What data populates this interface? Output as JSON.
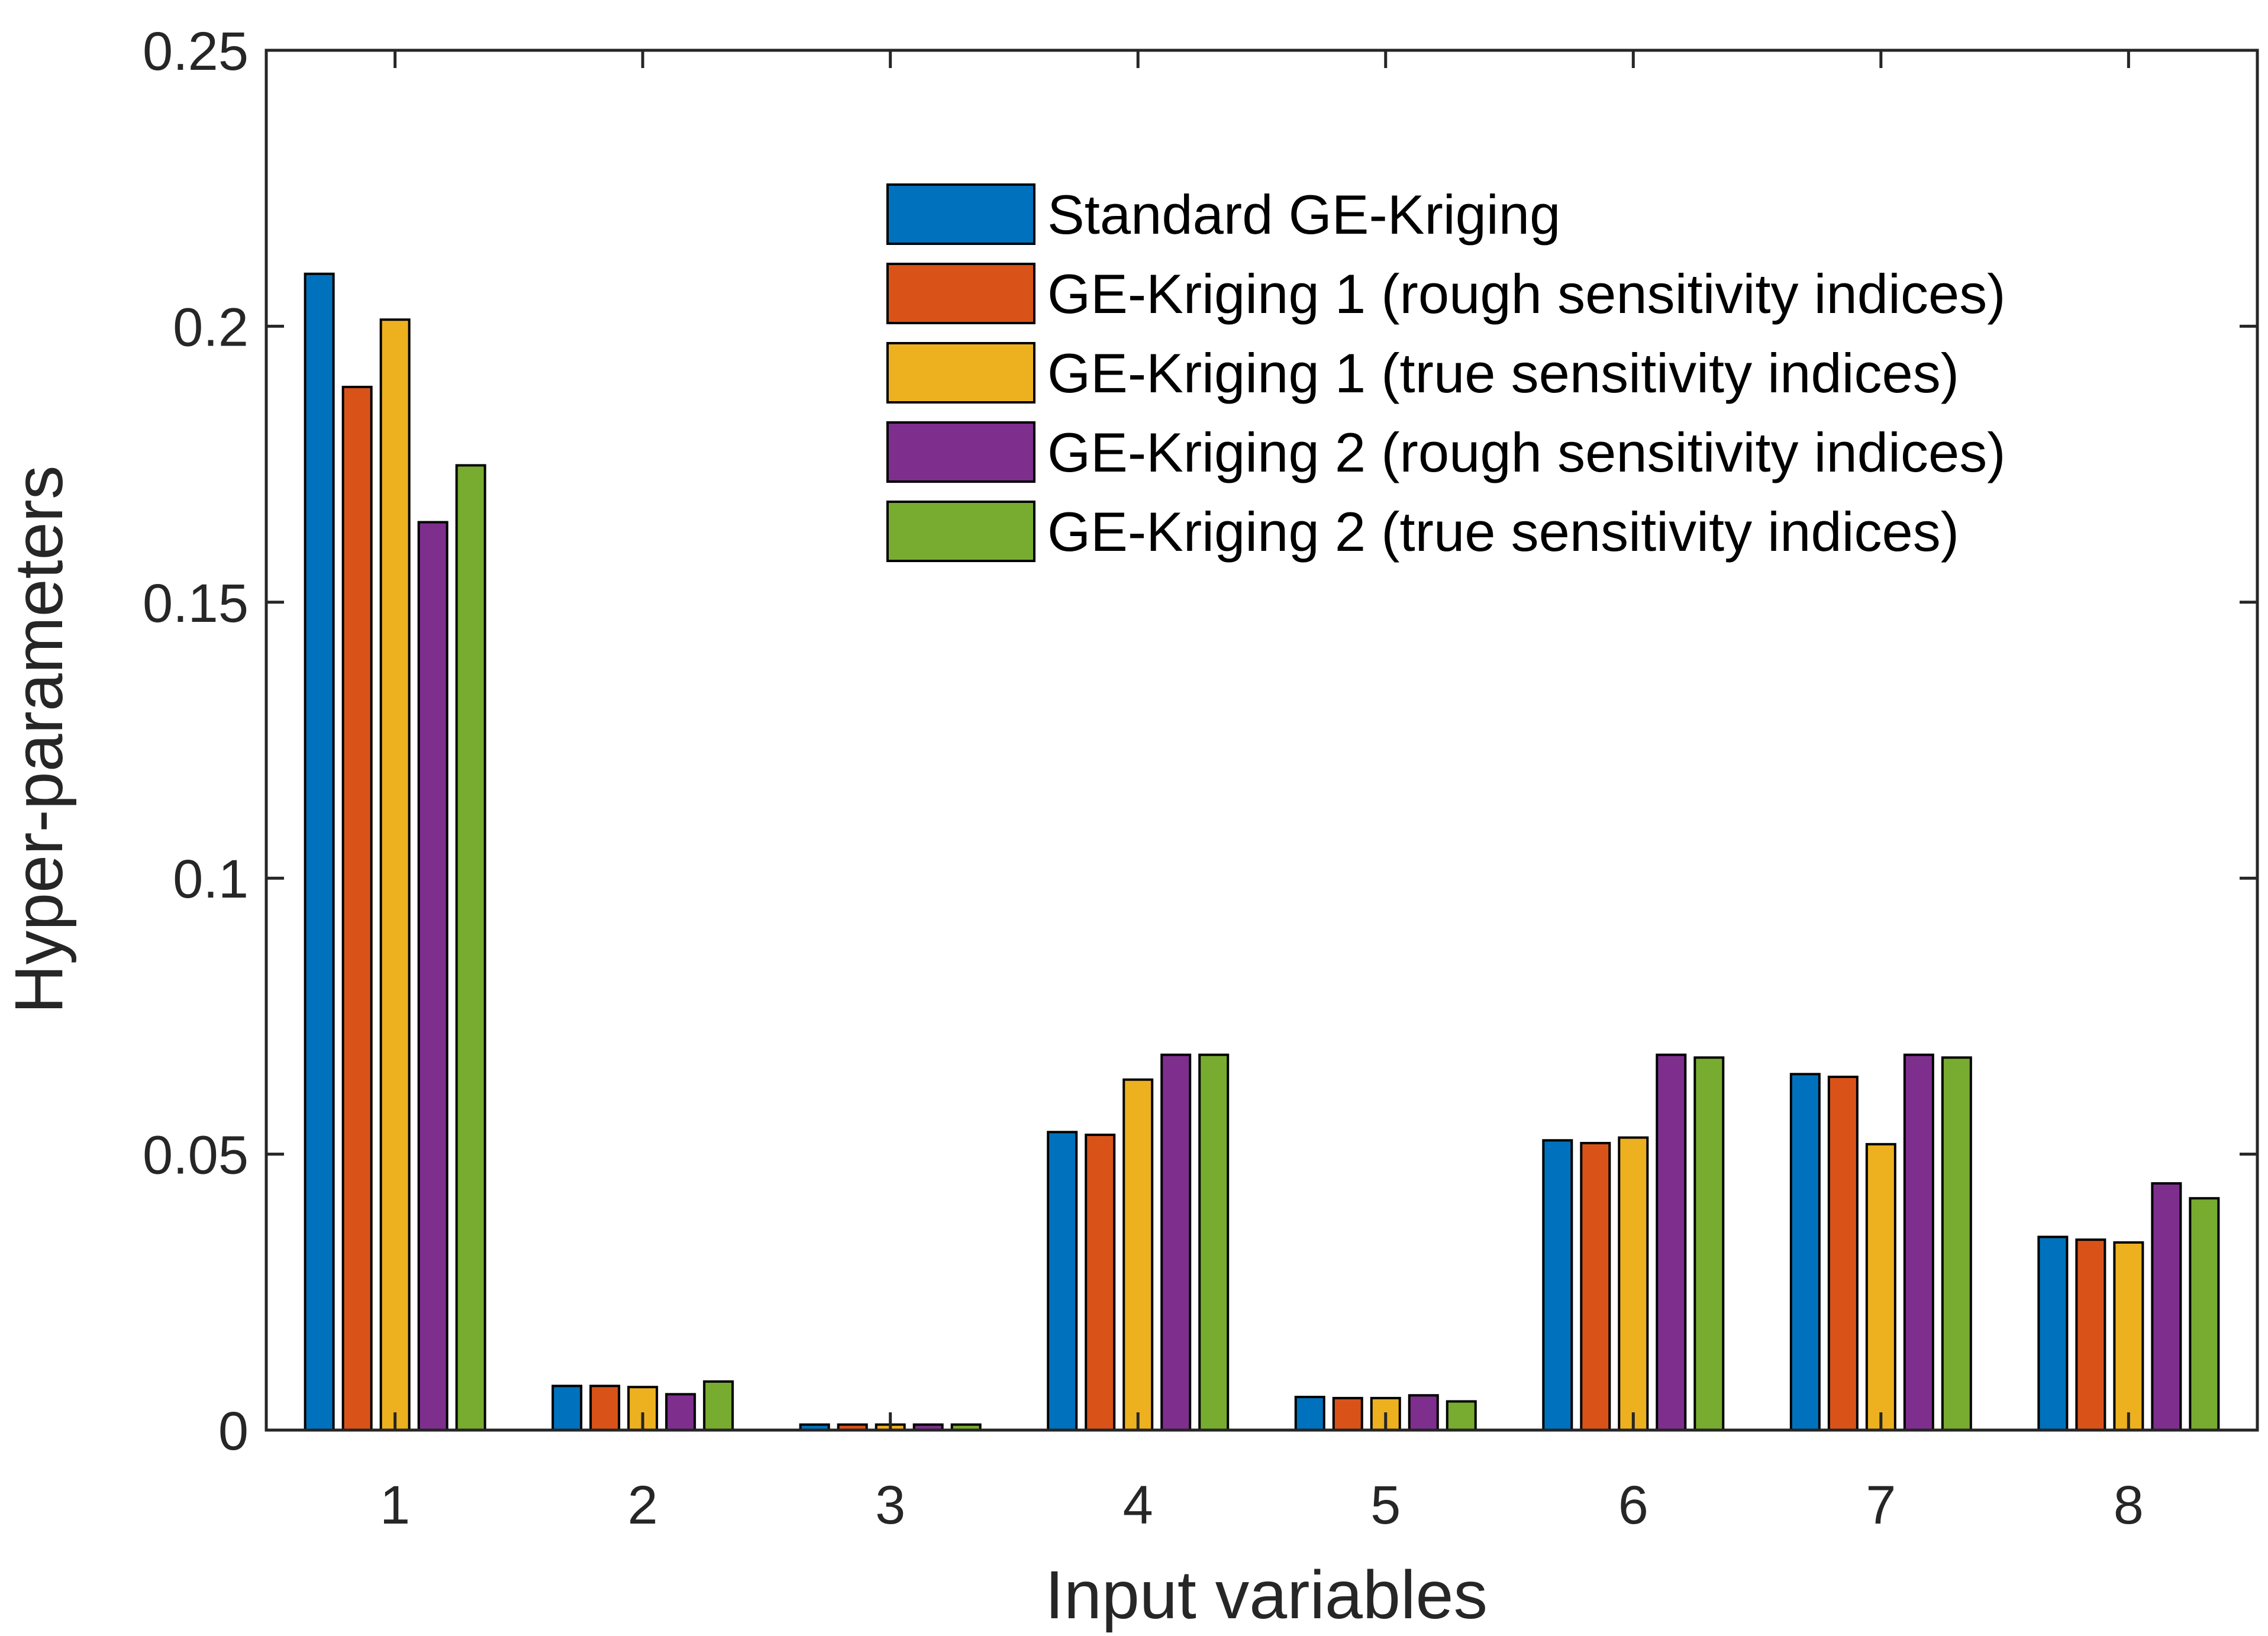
{
  "chart_data": {
    "type": "bar",
    "title": "",
    "xlabel": "Input variables",
    "ylabel": "Hyper-parameters",
    "categories": [
      "1",
      "2",
      "3",
      "4",
      "5",
      "6",
      "7",
      "8"
    ],
    "ylim": [
      0,
      0.25
    ],
    "yticks": [
      0,
      0.05,
      0.1,
      0.15,
      0.2,
      0.25
    ],
    "ytick_labels": [
      "0",
      "0.05",
      "0.1",
      "0.15",
      "0.2",
      "0.25"
    ],
    "legend_position": "top-right",
    "grid": false,
    "series": [
      {
        "name": "Standard GE-Kriging",
        "color": "#0072BD",
        "values": [
          0.2095,
          0.008,
          0.001,
          0.054,
          0.006,
          0.0525,
          0.0645,
          0.035
        ]
      },
      {
        "name": "GE-Kriging 1 (rough sensitivity indices)",
        "color": "#D95319",
        "values": [
          0.189,
          0.008,
          0.001,
          0.0535,
          0.0058,
          0.052,
          0.064,
          0.0345
        ]
      },
      {
        "name": "GE-Kriging 1 (true sensitivity indices)",
        "color": "#EDB120",
        "values": [
          0.2012,
          0.0078,
          0.001,
          0.0635,
          0.0058,
          0.053,
          0.0518,
          0.034
        ]
      },
      {
        "name": "GE-Kriging 2 (rough sensitivity indices)",
        "color": "#7E2F8E",
        "values": [
          0.1645,
          0.0065,
          0.001,
          0.068,
          0.0063,
          0.068,
          0.068,
          0.0447
        ]
      },
      {
        "name": "GE-Kriging 2 (true sensitivity indices)",
        "color": "#77AC30",
        "values": [
          0.1748,
          0.0088,
          0.001,
          0.068,
          0.0052,
          0.0675,
          0.0675,
          0.042
        ]
      }
    ]
  }
}
